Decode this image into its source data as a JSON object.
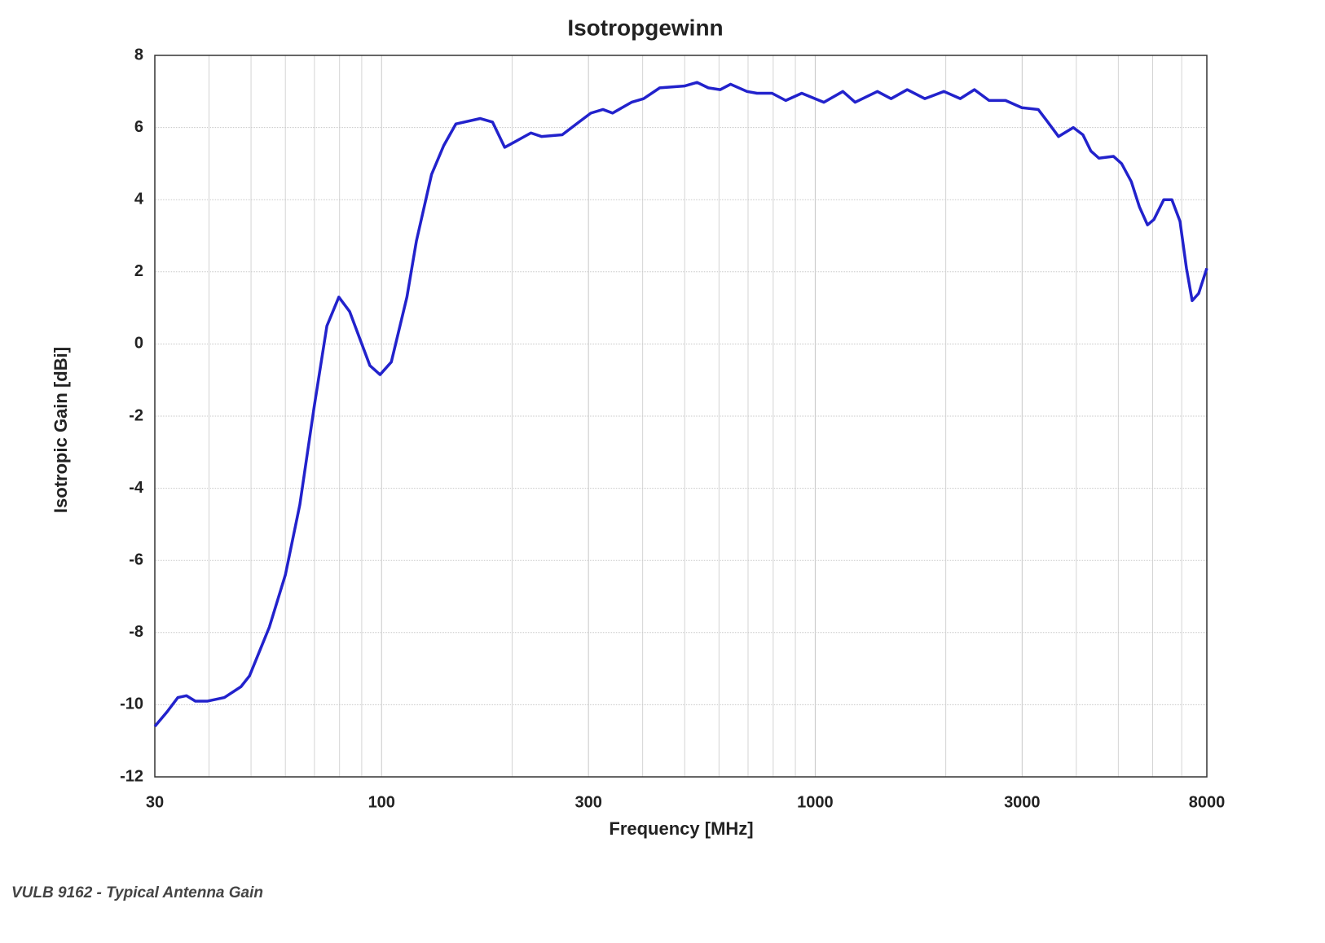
{
  "chart_data": {
    "type": "line",
    "title": "Isotropgewinn",
    "xlabel": "Frequency [MHz]",
    "ylabel": "Isotropic Gain [dBi]",
    "xscale": "log",
    "xlim": [
      30,
      8000
    ],
    "ylim": [
      -12,
      8
    ],
    "xticks": [
      30,
      100,
      300,
      1000,
      3000,
      8000
    ],
    "xgrid_minor": [
      40,
      50,
      60,
      70,
      80,
      90,
      200,
      400,
      500,
      600,
      700,
      800,
      900,
      2000,
      4000,
      5000,
      6000,
      7000
    ],
    "yticks": [
      -12,
      -10,
      -8,
      -6,
      -4,
      -2,
      0,
      2,
      4,
      6,
      8
    ],
    "grid": true,
    "x": [
      30,
      32,
      33.9,
      35.5,
      37.2,
      39.7,
      43.4,
      47.4,
      49.6,
      55.1,
      60,
      64.8,
      69.9,
      74.8,
      79.7,
      84.4,
      94,
      99.2,
      105.3,
      114.4,
      120.3,
      130.4,
      139.1,
      148.4,
      168.9,
      180.3,
      192.3,
      209.8,
      221,
      234,
      261,
      285,
      303.8,
      324,
      341,
      377,
      402,
      438,
      499,
      534,
      567,
      604,
      638,
      696,
      734,
      795,
      855,
      931,
      1047,
      1158,
      1236,
      1391,
      1496,
      1630,
      1790,
      1981,
      2160,
      2328,
      2517,
      2747,
      2996,
      3268,
      3414,
      3640,
      3937,
      4142,
      4322,
      4510,
      4875,
      5088,
      5357,
      5593,
      5838,
      6040,
      6365,
      6644,
      6937,
      7179,
      7400,
      7660,
      8000
    ],
    "series": [
      {
        "name": "Isotropic Gain",
        "color": "#2222cc",
        "values": [
          -10.6,
          -10.2,
          -9.8,
          -9.75,
          -9.9,
          -9.9,
          -9.8,
          -9.5,
          -9.2,
          -7.85,
          -6.4,
          -4.45,
          -1.75,
          0.5,
          1.3,
          0.9,
          -0.6,
          -0.85,
          -0.5,
          1.3,
          2.85,
          4.7,
          5.5,
          6.1,
          6.25,
          6.15,
          5.45,
          5.7,
          5.85,
          5.75,
          5.8,
          6.15,
          6.4,
          6.5,
          6.4,
          6.7,
          6.8,
          7.1,
          7.15,
          7.25,
          7.1,
          7.05,
          7.2,
          7.0,
          6.95,
          6.95,
          6.75,
          6.95,
          6.7,
          7.0,
          6.7,
          7.0,
          6.8,
          7.05,
          6.8,
          7.0,
          6.8,
          7.05,
          6.75,
          6.75,
          6.55,
          6.5,
          6.2,
          5.75,
          6.0,
          5.8,
          5.35,
          5.15,
          5.2,
          5.0,
          4.5,
          3.8,
          3.3,
          3.45,
          4.0,
          4.0,
          3.4,
          2.1,
          1.2,
          1.4,
          2.1
        ]
      }
    ]
  },
  "caption": "VULB 9162 - Typical Antenna Gain"
}
